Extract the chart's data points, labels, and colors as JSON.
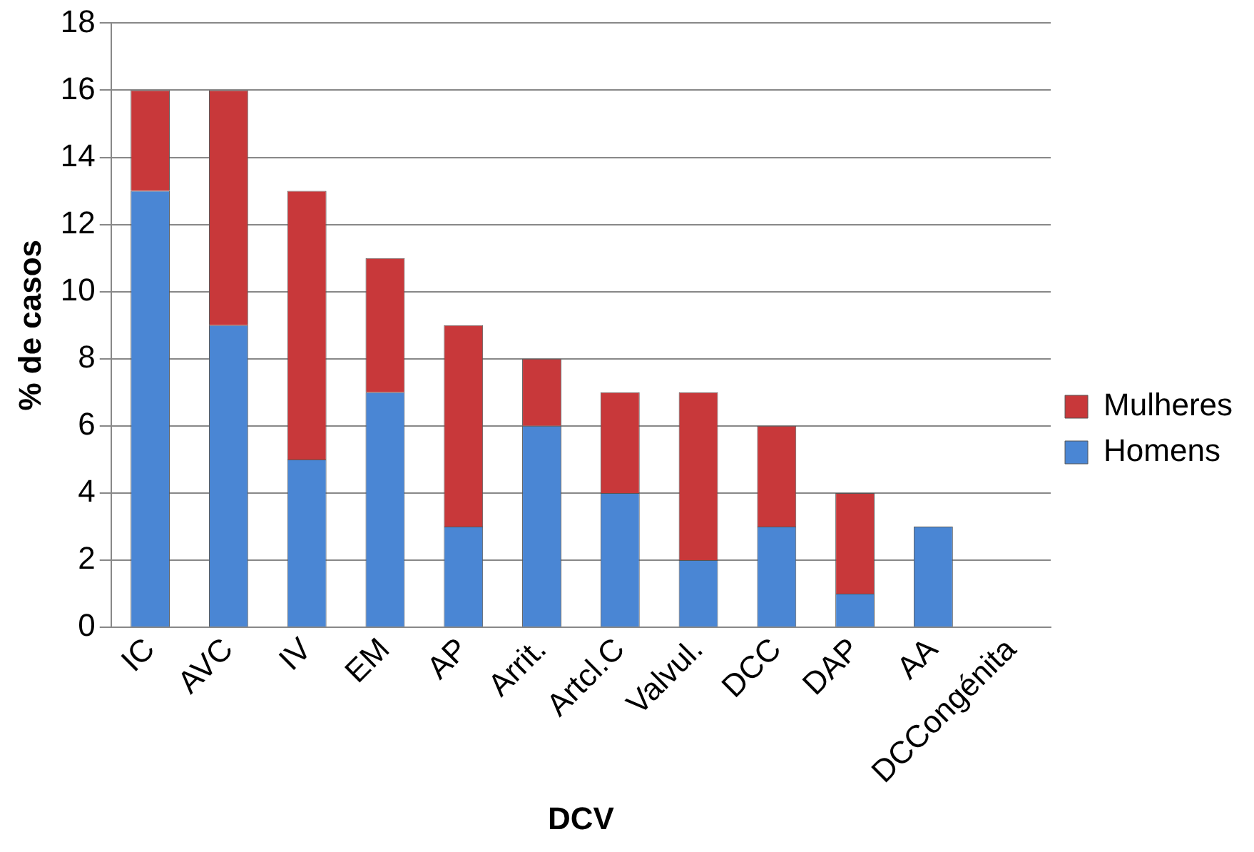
{
  "chart_data": {
    "type": "bar",
    "xlabel": "DCV",
    "ylabel": "% de casos",
    "categories": [
      "IC",
      "AVC",
      "IV",
      "EM",
      "AP",
      "Arrit.",
      "Artcl.C",
      "Valvul.",
      "DCC",
      "DAP",
      "AA",
      "DCCongénita"
    ],
    "series": [
      {
        "name": "Homens",
        "color": "#4a86d4",
        "values": [
          13,
          9,
          5,
          7,
          3,
          6,
          4,
          2,
          3,
          1,
          3,
          0
        ]
      },
      {
        "name": "Mulheres",
        "color": "#c8383a",
        "values": [
          3,
          7,
          8,
          4,
          6,
          2,
          3,
          5,
          3,
          3,
          0,
          0
        ]
      }
    ],
    "stacked": true,
    "ylim": [
      0,
      18
    ],
    "yticks": [
      0,
      2,
      4,
      6,
      8,
      10,
      12,
      14,
      16,
      18
    ],
    "grid": "y",
    "legend": "right"
  }
}
